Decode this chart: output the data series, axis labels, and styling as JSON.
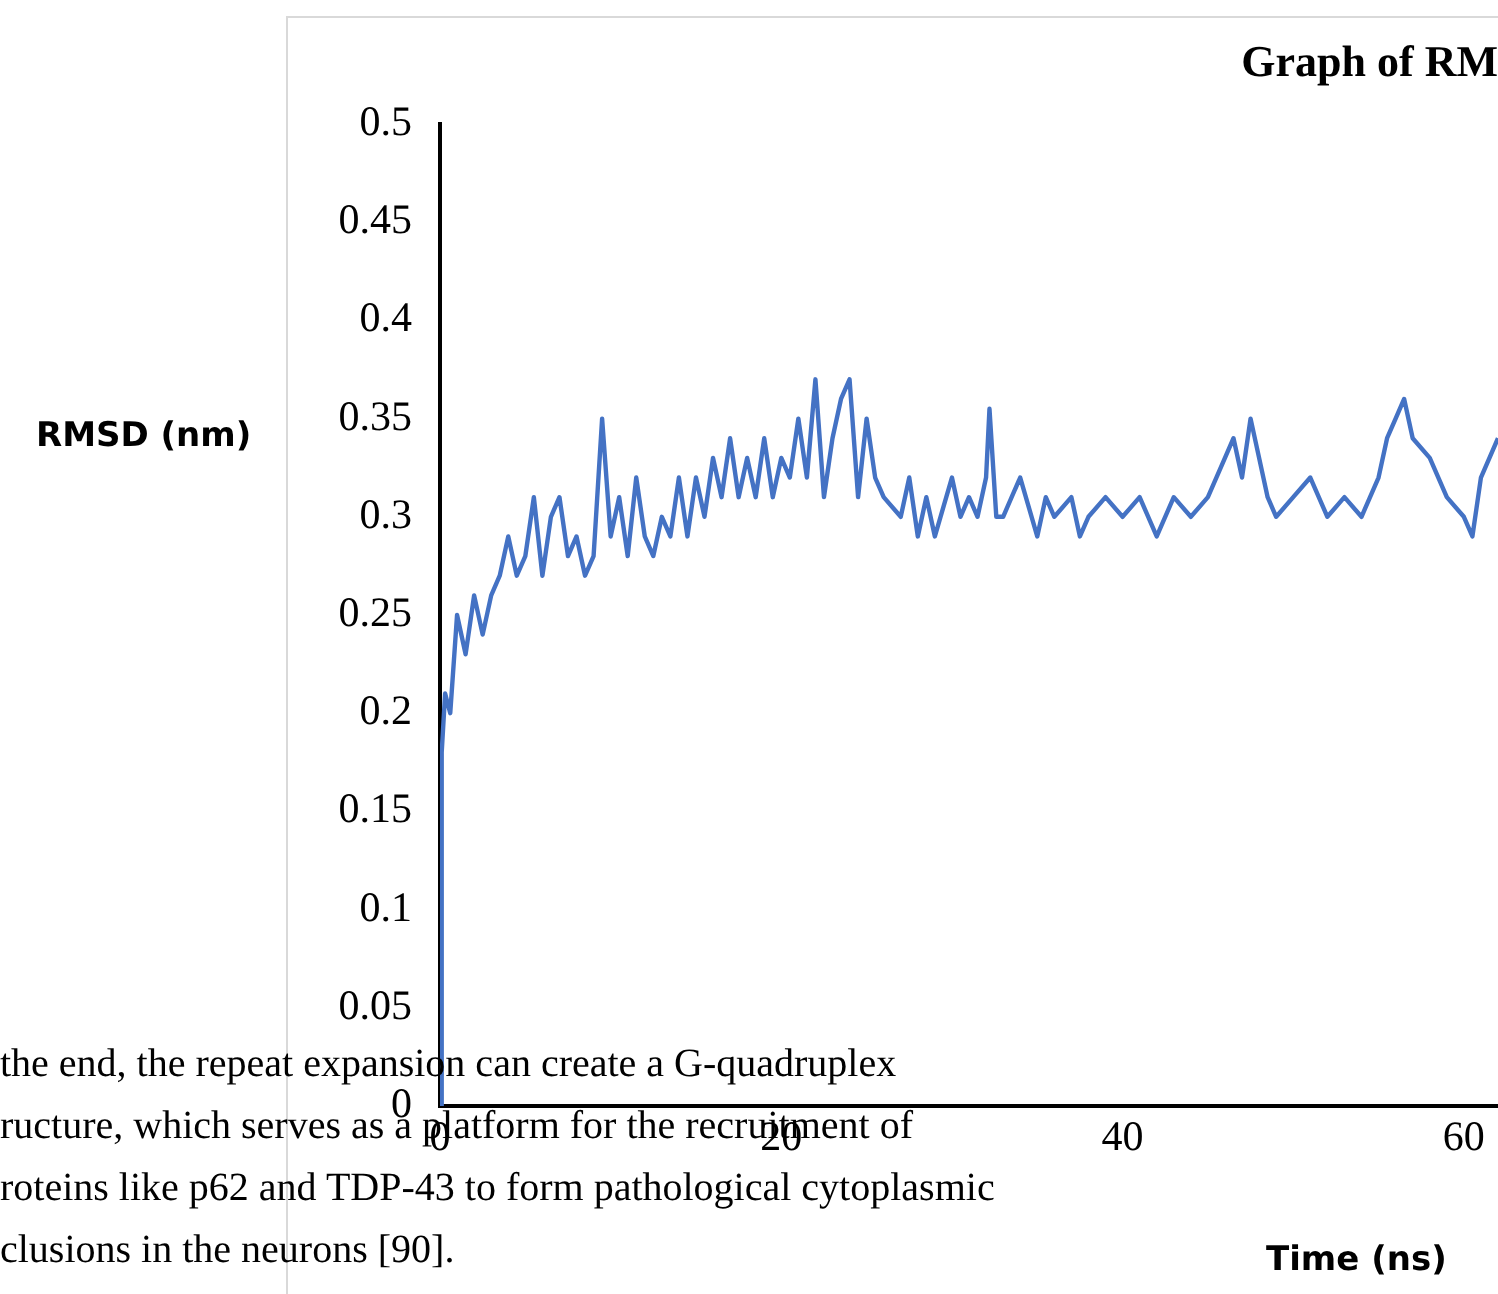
{
  "chart_data": {
    "type": "line",
    "title": "Graph of RM",
    "xlabel": "Time (ns)",
    "ylabel": "RMSD (nm)",
    "annotations": [
      "the end, the repeat expansion can create a G-quadruplex",
      "ructure, which serves as a platform for the recruitment of",
      "roteins like p62 and TDP-43 to form pathological cytoplasmic",
      "clusions in the neurons [90]."
    ],
    "xlim": [
      0,
      62
    ],
    "xticks": [
      0,
      20,
      40,
      60
    ],
    "ylim": [
      0,
      0.5
    ],
    "yticks": [
      0,
      0.05,
      0.1,
      0.15,
      0.2,
      0.25,
      0.3,
      0.35,
      0.4,
      0.45,
      0.5
    ],
    "grid": false,
    "legend": false,
    "marker": "none",
    "line_style": "solid",
    "series": [
      {
        "color": "#4472c4",
        "x": [
          0,
          0.1,
          0.3,
          0.6,
          1,
          1.5,
          2,
          2.5,
          3,
          3.5,
          4,
          4.5,
          5,
          5.5,
          6,
          6.5,
          7,
          7.5,
          8,
          8.5,
          9,
          9.5,
          10,
          10.5,
          11,
          11.5,
          12,
          12.5,
          13,
          13.5,
          14,
          14.5,
          15,
          15.5,
          16,
          16.5,
          17,
          17.5,
          18,
          18.5,
          19,
          19.5,
          20,
          20.5,
          21,
          21.5,
          22,
          22.5,
          23,
          23.5,
          24,
          24.5,
          25,
          25.5,
          26,
          27,
          27.5,
          28,
          28.5,
          29,
          30,
          30.5,
          31,
          31.5,
          32,
          32.2,
          32.6,
          33,
          34,
          35,
          35.5,
          36,
          37,
          37.5,
          38,
          39,
          40,
          41,
          42,
          43,
          44,
          45,
          46,
          46.5,
          47,
          47.5,
          48,
          48.5,
          49,
          50,
          51,
          52,
          53,
          54,
          55,
          55.5,
          56,
          56.5,
          57,
          58,
          59,
          60,
          60.5,
          61,
          62
        ],
        "values": [
          0,
          0.18,
          0.21,
          0.2,
          0.25,
          0.23,
          0.26,
          0.24,
          0.26,
          0.27,
          0.29,
          0.27,
          0.28,
          0.31,
          0.27,
          0.3,
          0.31,
          0.28,
          0.29,
          0.27,
          0.28,
          0.35,
          0.29,
          0.31,
          0.28,
          0.32,
          0.29,
          0.28,
          0.3,
          0.29,
          0.32,
          0.29,
          0.32,
          0.3,
          0.33,
          0.31,
          0.34,
          0.31,
          0.33,
          0.31,
          0.34,
          0.31,
          0.33,
          0.32,
          0.35,
          0.32,
          0.37,
          0.31,
          0.34,
          0.36,
          0.37,
          0.31,
          0.35,
          0.32,
          0.31,
          0.3,
          0.32,
          0.29,
          0.31,
          0.29,
          0.32,
          0.3,
          0.31,
          0.3,
          0.32,
          0.355,
          0.3,
          0.3,
          0.32,
          0.29,
          0.31,
          0.3,
          0.31,
          0.29,
          0.3,
          0.31,
          0.3,
          0.31,
          0.29,
          0.31,
          0.3,
          0.31,
          0.33,
          0.34,
          0.32,
          0.35,
          0.33,
          0.31,
          0.3,
          0.31,
          0.32,
          0.3,
          0.31,
          0.3,
          0.32,
          0.34,
          0.35,
          0.36,
          0.34,
          0.33,
          0.31,
          0.3,
          0.29,
          0.32,
          0.34
        ]
      }
    ]
  }
}
